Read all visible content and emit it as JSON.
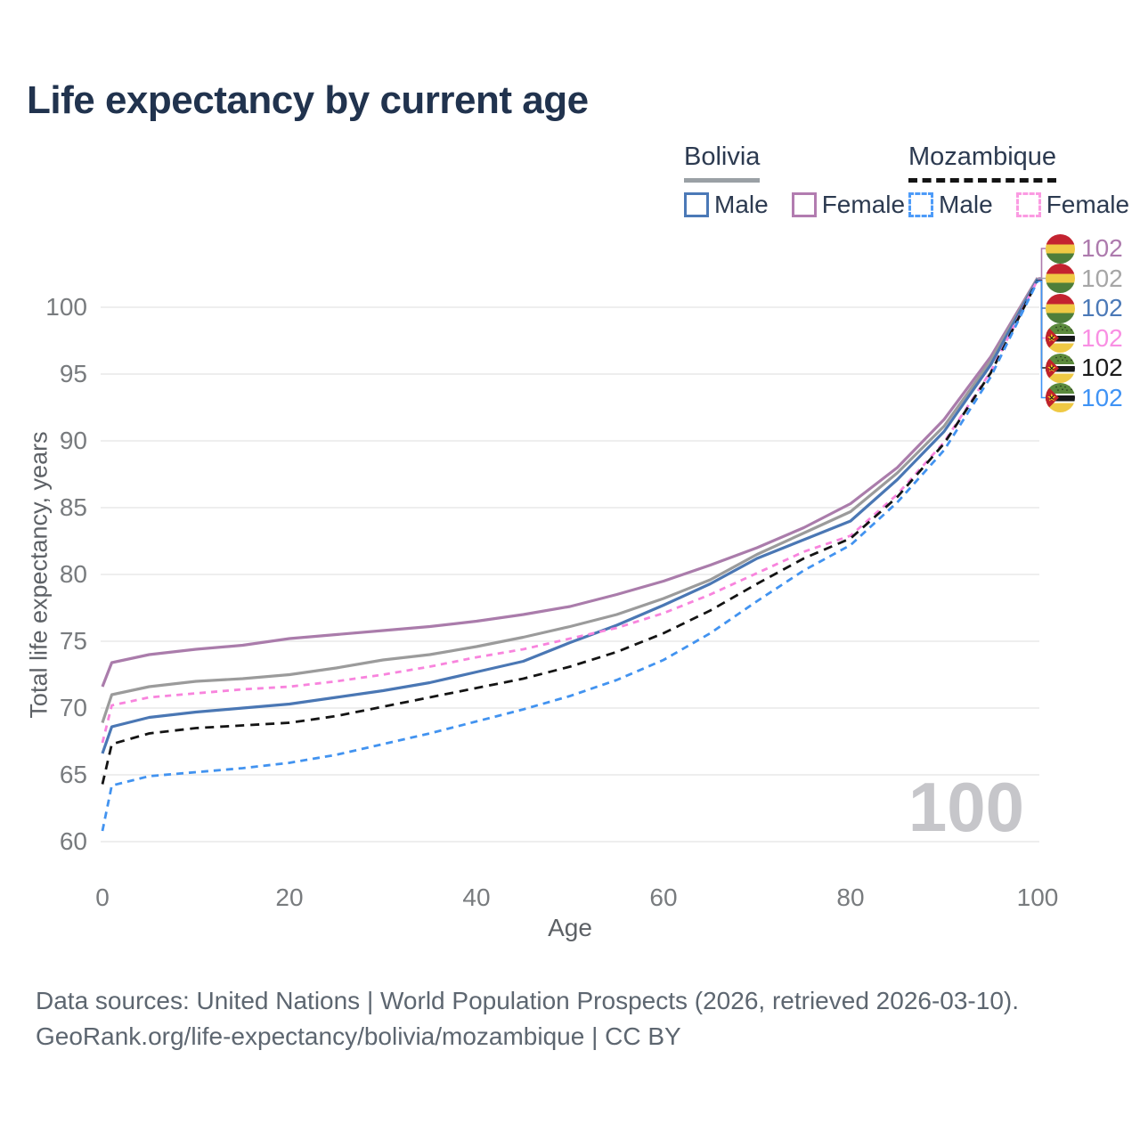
{
  "title": "Life expectancy by current age",
  "watermark": "100",
  "legend": {
    "groups": [
      {
        "name": "Bolivia",
        "line_style": "solid",
        "items": [
          {
            "label": "Male",
            "color": "#4b79b7"
          },
          {
            "label": "Female",
            "color": "#b27cb0"
          }
        ]
      },
      {
        "name": "Mozambique",
        "line_style": "dashed",
        "items": [
          {
            "label": "Male",
            "color": "#4d9bf8"
          },
          {
            "label": "Female",
            "color": "#fb9be2"
          }
        ]
      }
    ]
  },
  "footer": {
    "line1": "Data sources: United Nations | World Population Prospects (2026, retrieved 2026-03-10).",
    "line2": "GeoRank.org/life-expectancy/bolivia/mozambique | CC BY"
  },
  "colors": {
    "grid": "#eeeeee",
    "title_text": "#21334e",
    "tick_text": "#787b7e",
    "watermark": "#c6c6ca"
  },
  "end_labels": [
    {
      "value": "102",
      "flag": "bolivia",
      "series": "bolivia-female",
      "color": "#ad7aad"
    },
    {
      "value": "102",
      "flag": "bolivia",
      "series": "bolivia-both",
      "color": "#a6a6a6"
    },
    {
      "value": "102",
      "flag": "bolivia",
      "series": "bolivia-male",
      "color": "#4b79b7"
    },
    {
      "value": "102",
      "flag": "mozambique",
      "series": "mozambique-female",
      "color": "#f98fe3"
    },
    {
      "value": "102",
      "flag": "mozambique",
      "series": "mozambique-both",
      "color": "#1b1b1b"
    },
    {
      "value": "102",
      "flag": "mozambique",
      "series": "mozambique-male",
      "color": "#3f93f5"
    }
  ],
  "chart_data": {
    "type": "line",
    "title": "Life expectancy by current age",
    "xlabel": "Age",
    "ylabel": "Total life expectancy, years",
    "xlim": [
      0,
      100
    ],
    "ylim": [
      60,
      102.5
    ],
    "x_ticks": [
      0,
      20,
      40,
      60,
      80,
      100
    ],
    "y_ticks": [
      60,
      65,
      70,
      75,
      80,
      85,
      90,
      95,
      100
    ],
    "grid": "horizontal-only",
    "legend_position": "top-right",
    "ages": [
      0,
      1,
      5,
      10,
      15,
      20,
      25,
      30,
      35,
      40,
      45,
      50,
      55,
      60,
      65,
      70,
      75,
      80,
      85,
      90,
      95,
      100
    ],
    "series": [
      {
        "id": "bolivia-female",
        "name": "Bolivia Female",
        "country": "Bolivia",
        "sex": "Female",
        "color": "#aa7cab",
        "dash": null,
        "end_label": "102",
        "values": [
          71.6,
          73.4,
          74.0,
          74.4,
          74.7,
          75.2,
          75.5,
          75.8,
          76.1,
          76.5,
          77.0,
          77.6,
          78.5,
          79.5,
          80.7,
          82.0,
          83.5,
          85.3,
          88.0,
          91.6,
          96.3,
          102.2
        ]
      },
      {
        "id": "bolivia-both",
        "name": "Bolivia Both sexes",
        "country": "Bolivia",
        "sex": "Both",
        "color": "#9b9b9b",
        "dash": null,
        "end_label": "102",
        "values": [
          68.9,
          71.0,
          71.6,
          72.0,
          72.2,
          72.5,
          73.0,
          73.6,
          74.0,
          74.6,
          75.3,
          76.1,
          77.0,
          78.2,
          79.6,
          81.5,
          83.1,
          84.7,
          87.6,
          91.1,
          96.0,
          102.15
        ]
      },
      {
        "id": "bolivia-male",
        "name": "Bolivia Male",
        "country": "Bolivia",
        "sex": "Male",
        "color": "#4a77b4",
        "dash": null,
        "end_label": "102",
        "values": [
          66.6,
          68.6,
          69.3,
          69.7,
          70.0,
          70.3,
          70.8,
          71.3,
          71.9,
          72.7,
          73.5,
          74.9,
          76.2,
          77.7,
          79.3,
          81.2,
          82.6,
          84.0,
          87.1,
          90.7,
          95.7,
          102.1
        ]
      },
      {
        "id": "mozambique-female",
        "name": "Mozambique Female",
        "country": "Mozambique",
        "sex": "Female",
        "color": "#f884dd",
        "dash": "7 6",
        "end_label": "102",
        "values": [
          67.4,
          70.2,
          70.8,
          71.1,
          71.4,
          71.6,
          72.0,
          72.5,
          73.1,
          73.8,
          74.4,
          75.2,
          76.0,
          77.1,
          78.5,
          80.1,
          81.7,
          82.9,
          86.0,
          89.9,
          95.2,
          102.05
        ]
      },
      {
        "id": "mozambique-both",
        "name": "Mozambique Both sexes",
        "country": "Mozambique",
        "sex": "Both",
        "color": "#141414",
        "dash": "10 7",
        "end_label": "102",
        "values": [
          64.3,
          67.3,
          68.1,
          68.5,
          68.7,
          68.9,
          69.4,
          70.1,
          70.8,
          71.5,
          72.2,
          73.1,
          74.2,
          75.6,
          77.3,
          79.3,
          81.2,
          82.7,
          85.8,
          89.8,
          95.1,
          102.0
        ]
      },
      {
        "id": "mozambique-male",
        "name": "Mozambique Male",
        "country": "Mozambique",
        "sex": "Male",
        "color": "#4293f0",
        "dash": "8 6",
        "end_label": "102",
        "values": [
          60.8,
          64.2,
          64.9,
          65.2,
          65.5,
          65.9,
          66.5,
          67.3,
          68.1,
          69.0,
          69.9,
          70.9,
          72.1,
          73.6,
          75.6,
          78.0,
          80.3,
          82.2,
          85.4,
          89.3,
          94.8,
          101.95
        ]
      }
    ]
  }
}
